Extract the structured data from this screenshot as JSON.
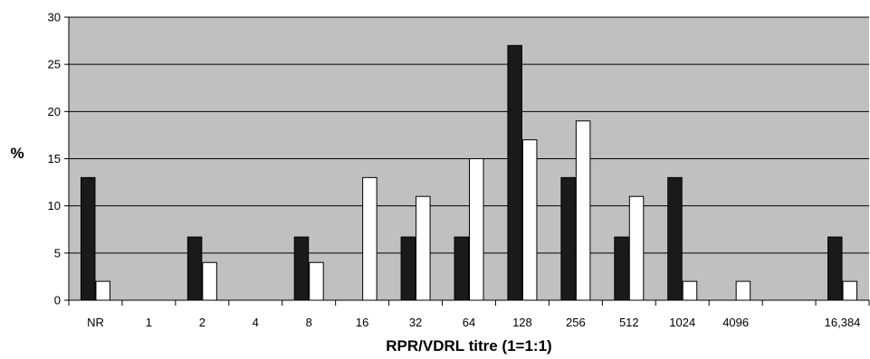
{
  "chart_data": {
    "type": "bar",
    "xlabel": "RPR/VDRL titre (1=1:1)",
    "ylabel": "%",
    "ylim": [
      0,
      30
    ],
    "yticks": [
      0,
      5,
      10,
      15,
      20,
      25,
      30
    ],
    "grid": true,
    "legend": "none",
    "categories": [
      "NR",
      "1",
      "2",
      "4",
      "8",
      "16",
      "32",
      "64",
      "128",
      "256",
      "512",
      "1024",
      "4096",
      "",
      "16,384"
    ],
    "series": [
      {
        "color": "#1a1a1a",
        "values": [
          13,
          0,
          6.7,
          0,
          6.7,
          0,
          6.7,
          6.7,
          27,
          13,
          6.7,
          13,
          0,
          0,
          6.7
        ]
      },
      {
        "color": "#ffffff",
        "values": [
          2,
          0,
          4,
          0,
          4,
          13,
          11,
          15,
          17,
          19,
          11,
          2,
          2,
          0,
          2
        ]
      }
    ],
    "colors": {
      "plot_background": "#c0c0c0",
      "gridline": "#000000"
    }
  }
}
